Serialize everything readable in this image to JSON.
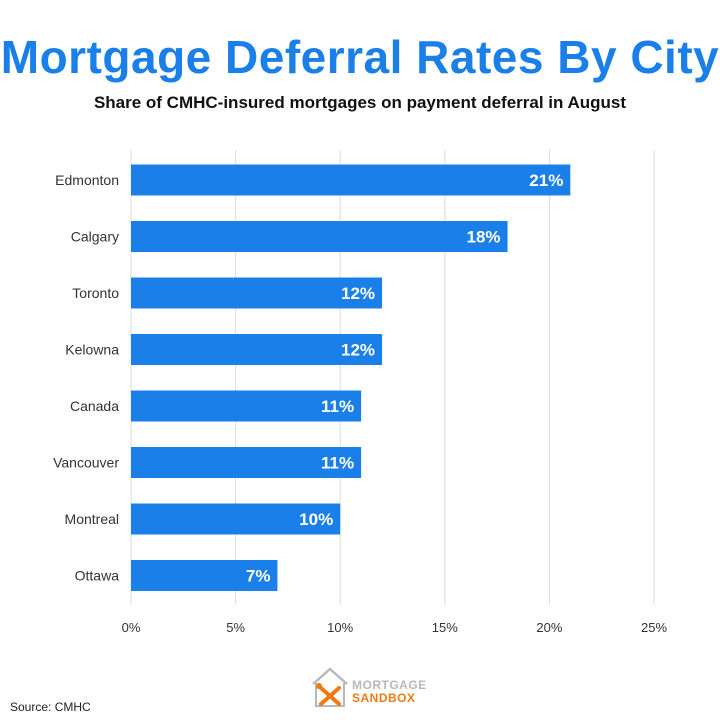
{
  "header": {
    "title": "Mortgage Deferral Rates By City",
    "subtitle": "Share of CMHC-insured mortgages on payment deferral in August"
  },
  "chart_data": {
    "type": "bar",
    "orientation": "horizontal",
    "categories": [
      "Edmonton",
      "Calgary",
      "Toronto",
      "Kelowna",
      "Canada",
      "Vancouver",
      "Montreal",
      "Ottawa"
    ],
    "values": [
      21,
      18,
      12,
      12,
      11,
      11,
      10,
      7
    ],
    "value_labels": [
      "21%",
      "18%",
      "12%",
      "12%",
      "11%",
      "11%",
      "10%",
      "7%"
    ],
    "xlim": [
      0,
      25
    ],
    "xticks": [
      0,
      5,
      10,
      15,
      20,
      25
    ],
    "xtick_labels": [
      "0%",
      "5%",
      "10%",
      "15%",
      "20%",
      "25%"
    ],
    "grid": true,
    "bar_color": "#1a7fe8"
  },
  "footer": {
    "source": "Source: CMHC",
    "logo_top": "MORTGAGE",
    "logo_bottom": "SANDBOX"
  },
  "colors": {
    "accent": "#1a7fe8",
    "logo_orange": "#f07a12",
    "logo_gray": "#b8b8b8"
  }
}
